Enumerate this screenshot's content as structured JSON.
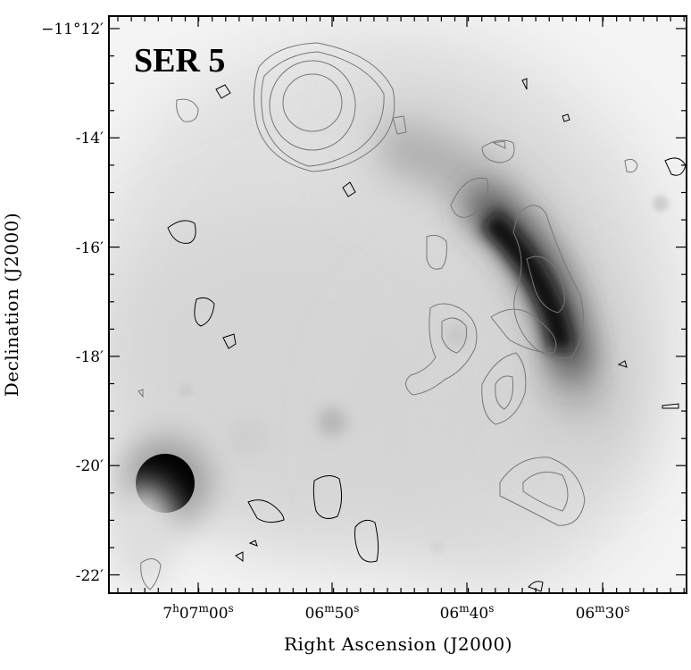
{
  "panel_label": "SER 5",
  "axes": {
    "x_title": "Right Ascension (J2000)",
    "y_title": "Declination (J2000)",
    "x_ticks": [
      {
        "main": "7",
        "sup1": "h",
        "mid": "07",
        "sup2": "m",
        "sec": "00",
        "sup3": "s"
      },
      {
        "main": "",
        "sup1": "",
        "mid": "06",
        "sup2": "m",
        "sec": "50",
        "sup3": "s"
      },
      {
        "main": "",
        "sup1": "",
        "mid": "06",
        "sup2": "m",
        "sec": "40",
        "sup3": "s"
      },
      {
        "main": "",
        "sup1": "",
        "mid": "06",
        "sup2": "m",
        "sec": "30",
        "sup3": "s"
      }
    ],
    "y_ticks": [
      "−11°12′",
      "-14′",
      "-16′",
      "-18′",
      "-20′",
      "-22′"
    ]
  },
  "image": {
    "description_colormap": "grayscale",
    "contour_colors": [
      "#000000",
      "#777777"
    ]
  }
}
